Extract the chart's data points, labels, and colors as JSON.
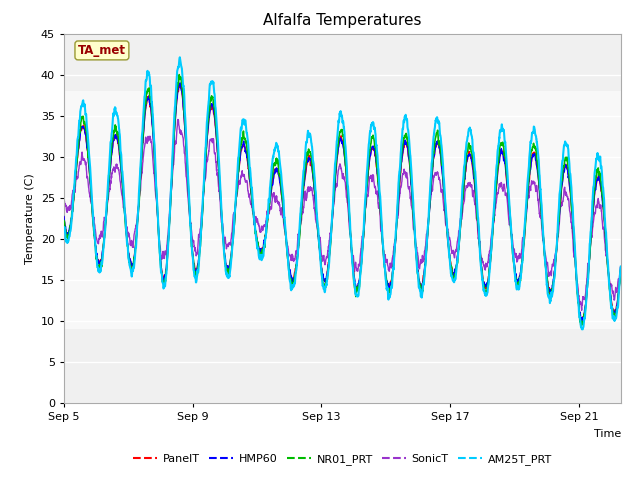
{
  "title": "Alfalfa Temperatures",
  "xlabel": "Time",
  "ylabel": "Temperature (C)",
  "ylim": [
    0,
    45
  ],
  "yticks": [
    0,
    5,
    10,
    15,
    20,
    25,
    30,
    35,
    40,
    45
  ],
  "xtick_positions": [
    0,
    4,
    8,
    12,
    16
  ],
  "xtick_labels": [
    "Sep 5",
    "Sep 9",
    "Sep 13",
    "Sep 17",
    "Sep 21"
  ],
  "xlim": [
    0,
    17.3
  ],
  "annotation_text": "TA_met",
  "annotation_color": "#990000",
  "annotation_bg": "#ffffcc",
  "series_colors": {
    "PanelT": "#ff0000",
    "HMP60": "#0000ff",
    "NR01_PRT": "#00bb00",
    "SonicT": "#9933cc",
    "AM25T_PRT": "#00ccff"
  },
  "series_linewidths": {
    "PanelT": 1.0,
    "HMP60": 1.0,
    "NR01_PRT": 1.2,
    "SonicT": 1.0,
    "AM25T_PRT": 1.5
  },
  "legend_entries": [
    "PanelT",
    "HMP60",
    "NR01_PRT",
    "SonicT",
    "AM25T_PRT"
  ],
  "bg_upper_color": "#e0e0e0",
  "bg_mid_color": "#ebebeb",
  "bg_lower_color": "#e0e0e0",
  "plot_bg": "#f0f0f0",
  "white_band_color": "#ffffff",
  "title_fontsize": 11,
  "axis_fontsize": 8,
  "tick_fontsize": 8
}
